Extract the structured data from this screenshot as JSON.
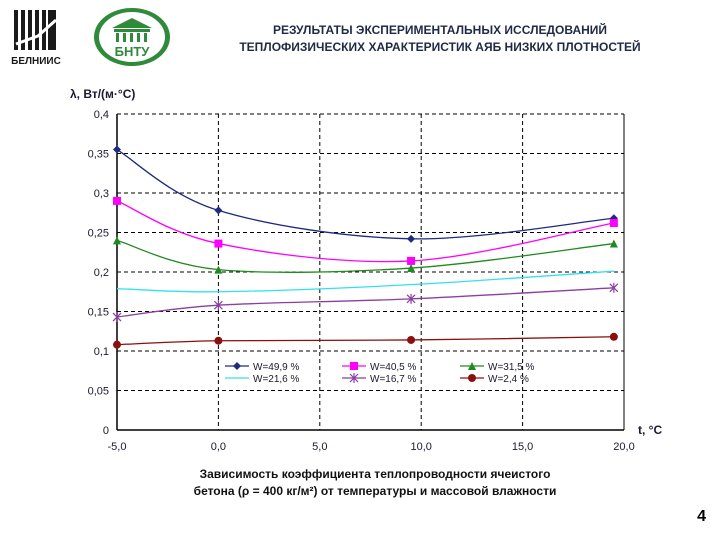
{
  "header": {
    "logo_left_text": "БЕЛНИИС",
    "logo_right_text": "БНТУ",
    "title_line1": "РЕЗУЛЬТАТЫ ЭКСПЕРИМЕНТАЛЬНЫХ ИССЛЕДОВАНИЙ",
    "title_line2": "ТЕПЛОФИЗИЧЕСКИХ ХАРАКТЕРИСТИК АЯБ НИЗКИХ ПЛОТНОСТЕЙ"
  },
  "caption": {
    "line1": "Зависимость коэффициента теплопроводности ячеистого",
    "line2": "бетона (ρ = 400 кг/м²) от температуры и массовой влажности"
  },
  "page_number": "4",
  "chart_data": {
    "type": "line",
    "xlabel": "t, °C",
    "ylabel": "λ, Вт/(м·°С)",
    "xlim": [
      -5,
      20
    ],
    "ylim": [
      0,
      0.4
    ],
    "x_ticks": [
      "-5,0",
      "0,0",
      "5,0",
      "10,0",
      "15,0",
      "20,0"
    ],
    "y_ticks": [
      "0",
      "0,05",
      "0,1",
      "0,15",
      "0,2",
      "0,25",
      "0,3",
      "0,35",
      "0,4"
    ],
    "grid": "dashed vertical and horizontal lines",
    "legend_position": "lower-center, inside plot",
    "series": [
      {
        "name": "W=49,9 %",
        "color": "#1f2a80",
        "marker": "diamond",
        "x": [
          -5,
          0,
          9.5,
          19.5
        ],
        "y": [
          0.355,
          0.278,
          0.242,
          0.268
        ]
      },
      {
        "name": "W=40,5 %",
        "color": "#ff00ff",
        "marker": "square",
        "x": [
          -5,
          0,
          9.5,
          19.5
        ],
        "y": [
          0.29,
          0.236,
          0.214,
          0.262
        ]
      },
      {
        "name": "W=31,5 %",
        "color": "#1f8a1f",
        "marker": "triangle",
        "x": [
          -5,
          0,
          9.5,
          19.5
        ],
        "y": [
          0.24,
          0.203,
          0.205,
          0.236
        ]
      },
      {
        "name": "W=21,6 %",
        "color": "#33e0f0",
        "marker": "none",
        "x": [
          -5,
          0,
          9.5,
          19.5
        ],
        "y": [
          0.179,
          0.175,
          0.184,
          0.201
        ]
      },
      {
        "name": "W=16,7 %",
        "color": "#8a3fa0",
        "marker": "star",
        "x": [
          -5,
          0,
          9.5,
          19.5
        ],
        "y": [
          0.143,
          0.158,
          0.166,
          0.18
        ]
      },
      {
        "name": "W=2,4 %",
        "color": "#8a1010",
        "marker": "circle",
        "x": [
          -5,
          0,
          9.5,
          19.5
        ],
        "y": [
          0.108,
          0.113,
          0.114,
          0.118
        ]
      }
    ]
  }
}
